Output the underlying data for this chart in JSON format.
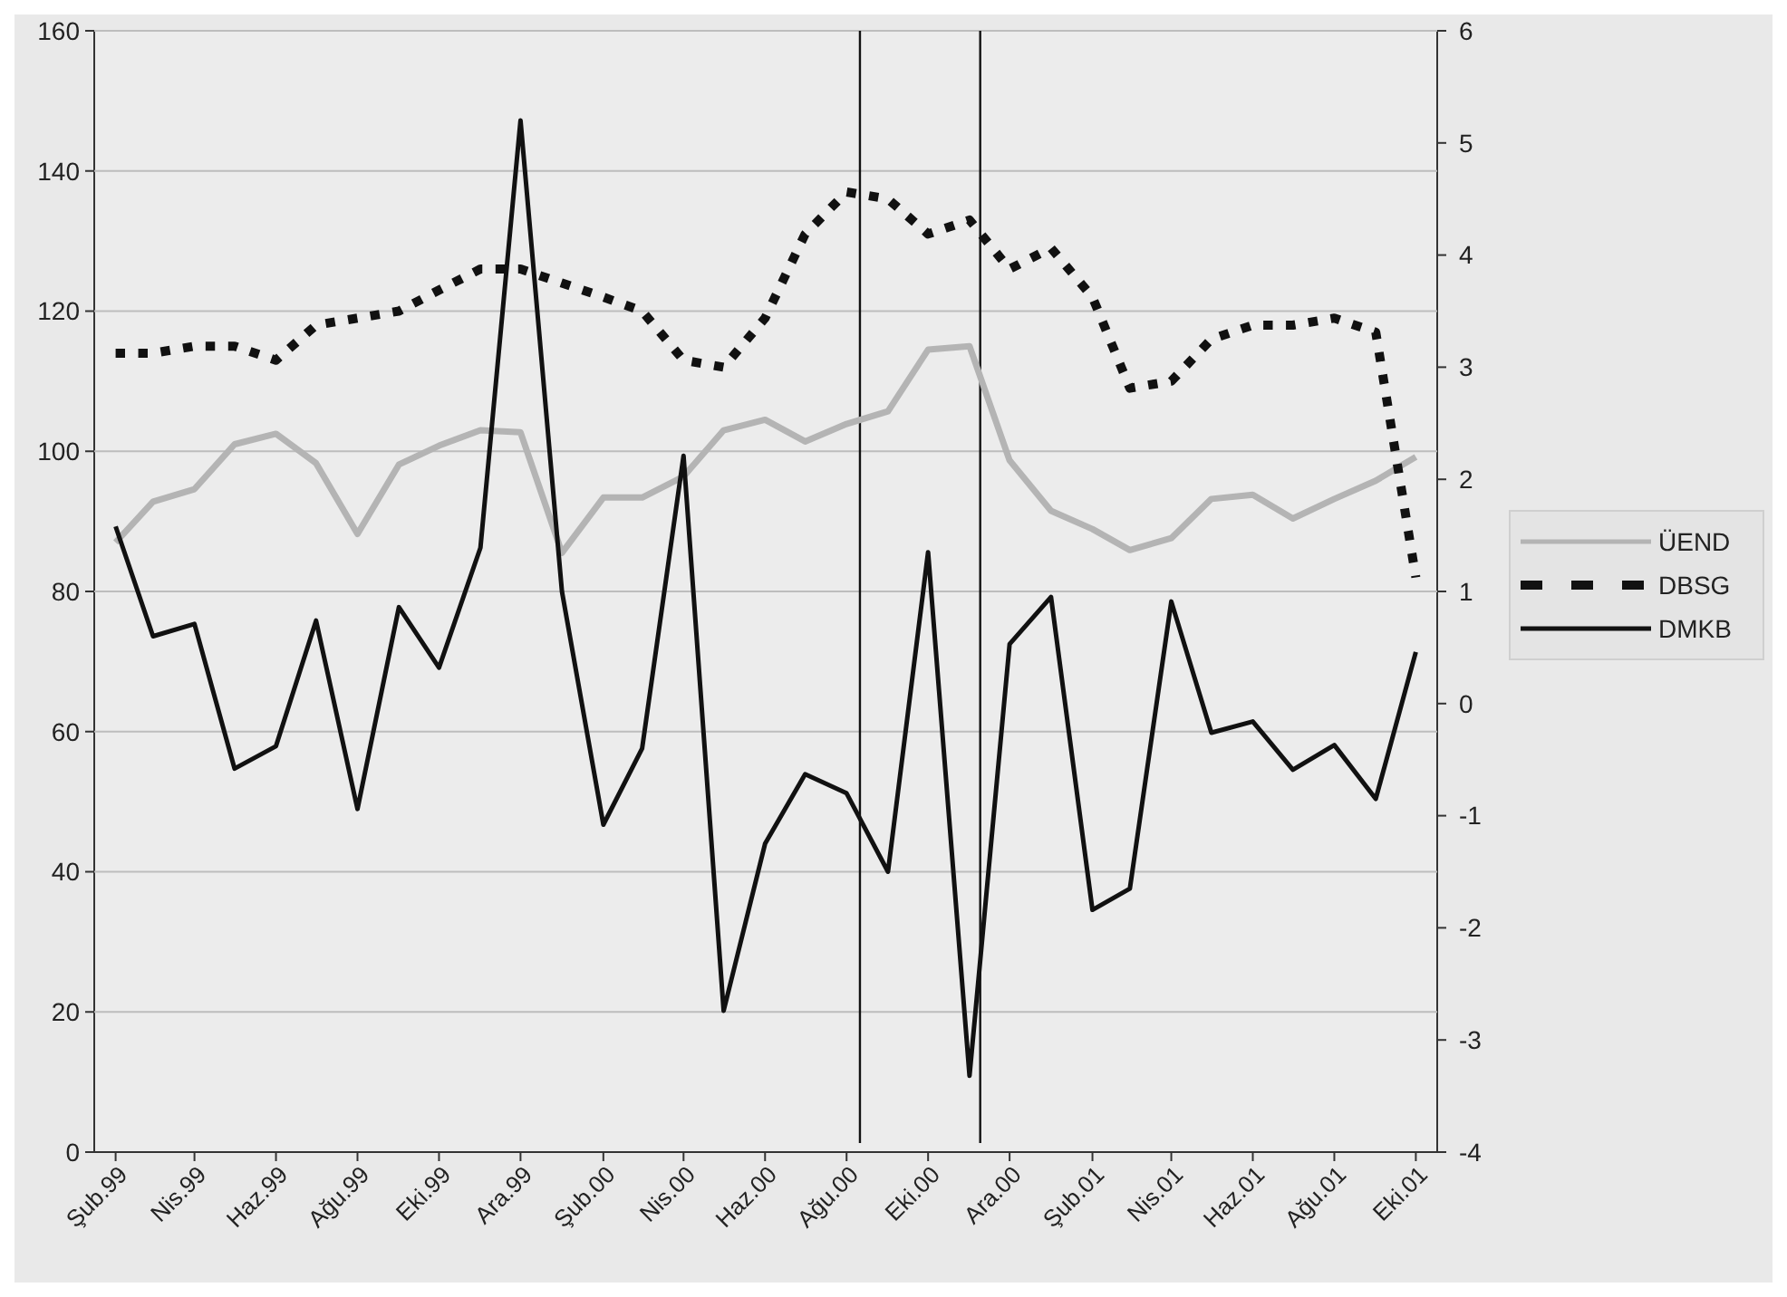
{
  "chart_data": {
    "type": "line",
    "x": [
      "1999-02",
      "1999-03",
      "1999-04",
      "1999-05",
      "1999-06",
      "1999-07",
      "1999-08",
      "1999-09",
      "1999-10",
      "1999-11",
      "1999-12",
      "2000-01",
      "2000-02",
      "2000-03",
      "2000-04",
      "2000-05",
      "2000-06",
      "2000-07",
      "2000-08",
      "2000-09",
      "2000-10",
      "2000-11",
      "2000-12",
      "2001-01",
      "2001-02",
      "2001-03",
      "2001-04",
      "2001-05",
      "2001-06",
      "2001-07",
      "2001-08",
      "2001-09",
      "2001-10"
    ],
    "xlim": [
      "1999-01-16",
      "2001-10-17"
    ],
    "xticks": [
      {
        "value": "1999-02",
        "label": "Şub.99"
      },
      {
        "value": "1999-04",
        "label": "Nis.99"
      },
      {
        "value": "1999-06",
        "label": "Haz.99"
      },
      {
        "value": "1999-08",
        "label": "Ağu.99"
      },
      {
        "value": "1999-10",
        "label": "Eki.99"
      },
      {
        "value": "1999-12",
        "label": "Ara.99"
      },
      {
        "value": "2000-02",
        "label": "Şub.00"
      },
      {
        "value": "2000-04",
        "label": "Nis.00"
      },
      {
        "value": "2000-06",
        "label": "Haz.00"
      },
      {
        "value": "2000-08",
        "label": "Ağu.00"
      },
      {
        "value": "2000-10",
        "label": "Eki.00"
      },
      {
        "value": "2000-12",
        "label": "Ara.00"
      },
      {
        "value": "2001-02",
        "label": "Şub.01"
      },
      {
        "value": "2001-04",
        "label": "Nis.01"
      },
      {
        "value": "2001-06",
        "label": "Haz.01"
      },
      {
        "value": "2001-08",
        "label": "Ağu.01"
      },
      {
        "value": "2001-10",
        "label": "Eki.01"
      }
    ],
    "ylim": [
      0,
      160
    ],
    "yticks": [
      0,
      20,
      40,
      60,
      80,
      100,
      120,
      140,
      160
    ],
    "y2lim": [
      -4,
      6
    ],
    "y2ticks": [
      -4,
      -3,
      -2,
      -1,
      0,
      1,
      2,
      3,
      4,
      5,
      6
    ],
    "series": [
      {
        "name": "ÜEND",
        "color": "#b4b4b4",
        "line_style": "solid",
        "values": [
          87,
          92.8,
          94.6,
          101,
          102.5,
          98.3,
          88.2,
          98.1,
          100.8,
          103,
          102.7,
          85.5,
          93.4,
          93.4,
          96.4,
          103,
          104.5,
          101.4,
          103.9,
          105.7,
          114.5,
          115,
          98.7,
          91.5,
          88.9,
          85.9,
          87.6,
          93.2,
          93.8,
          90.4,
          93.2,
          95.8,
          99.2
        ]
      },
      {
        "name": "DBSG",
        "color": "#111111",
        "line_style": "dashed",
        "values": [
          114,
          114,
          115,
          115,
          113,
          118,
          119,
          120,
          123,
          126,
          126,
          124,
          122,
          120,
          113,
          112,
          119,
          131,
          137,
          136,
          131,
          133,
          126,
          129,
          122,
          109,
          110,
          116,
          118,
          118,
          119,
          117,
          82
        ]
      },
      {
        "name": "DMKB",
        "color": "#111111",
        "line_style": "solid",
        "axis": "y2",
        "values": [
          1.58,
          0.6,
          0.71,
          -0.58,
          -0.38,
          0.74,
          -0.94,
          0.86,
          0.32,
          1.39,
          5.2,
          1.0,
          -1.08,
          -0.4,
          2.21,
          -2.74,
          -1.25,
          -0.63,
          -0.8,
          -1.5,
          1.35,
          -3.32,
          0.53,
          0.95,
          -1.84,
          -1.65,
          0.91,
          -0.26,
          -0.16,
          -0.59,
          -0.37,
          -0.85,
          0.46
        ]
      }
    ],
    "ref_lines": [
      {
        "axis": "x",
        "value": "2000-08-11",
        "color": "#111111"
      },
      {
        "axis": "x",
        "value": "2000-11-09",
        "color": "#111111"
      }
    ],
    "grid": "y",
    "legend": "right",
    "marker": "none"
  }
}
